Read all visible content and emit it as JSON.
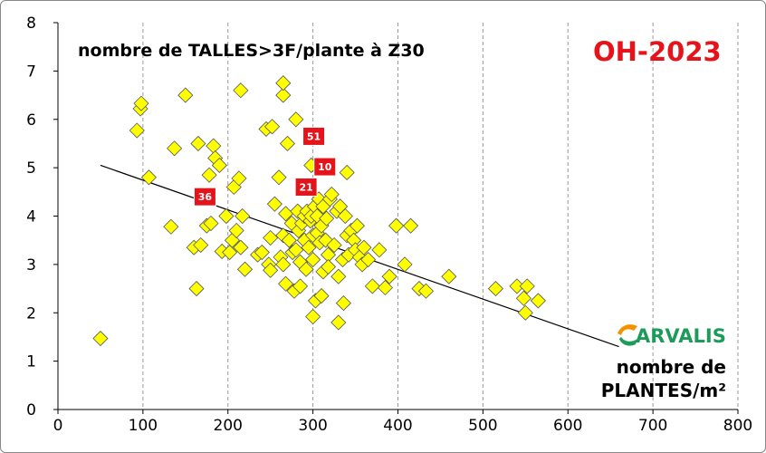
{
  "chart_data": {
    "type": "scatter",
    "title": "nombre de TALLES>3F/plante à Z30",
    "badge": "OH-2023",
    "xlabel_line1": "nombre de",
    "xlabel_line2": "PLANTES/m²",
    "xlim": [
      0,
      800
    ],
    "ylim": [
      0,
      8
    ],
    "xticks": [
      0,
      100,
      200,
      300,
      400,
      500,
      600,
      700,
      800
    ],
    "yticks": [
      0,
      1,
      2,
      3,
      4,
      5,
      6,
      7,
      8
    ],
    "grid": "vertical dashed",
    "marker_color": "#ffff00",
    "marker_edge": "#555555",
    "trend": {
      "x1": 50,
      "y1": 5.05,
      "x2": 660,
      "y2": 1.3
    },
    "points": [
      [
        50,
        1.47
      ],
      [
        93,
        5.77
      ],
      [
        97,
        6.22
      ],
      [
        98,
        6.33
      ],
      [
        107,
        4.8
      ],
      [
        133,
        3.78
      ],
      [
        137,
        5.4
      ],
      [
        150,
        6.5
      ],
      [
        160,
        3.35
      ],
      [
        163,
        2.5
      ],
      [
        165,
        5.5
      ],
      [
        168,
        3.4
      ],
      [
        170,
        4.4
      ],
      [
        175,
        3.8
      ],
      [
        178,
        4.85
      ],
      [
        180,
        3.85
      ],
      [
        183,
        5.45
      ],
      [
        185,
        5.2
      ],
      [
        190,
        5.05
      ],
      [
        193,
        3.27
      ],
      [
        198,
        4.0
      ],
      [
        202,
        3.25
      ],
      [
        205,
        3.5
      ],
      [
        207,
        4.6
      ],
      [
        210,
        3.7
      ],
      [
        213,
        4.78
      ],
      [
        215,
        6.6
      ],
      [
        215,
        3.35
      ],
      [
        217,
        4.0
      ],
      [
        220,
        2.9
      ],
      [
        235,
        3.2
      ],
      [
        240,
        3.25
      ],
      [
        245,
        5.8
      ],
      [
        248,
        3.0
      ],
      [
        250,
        2.88
      ],
      [
        250,
        3.55
      ],
      [
        252,
        5.85
      ],
      [
        255,
        4.25
      ],
      [
        260,
        4.8
      ],
      [
        262,
        3.15
      ],
      [
        265,
        3.0
      ],
      [
        265,
        3.6
      ],
      [
        265,
        6.5
      ],
      [
        265,
        6.75
      ],
      [
        268,
        2.6
      ],
      [
        268,
        4.05
      ],
      [
        270,
        5.5
      ],
      [
        272,
        3.5
      ],
      [
        275,
        3.85
      ],
      [
        276,
        3.25
      ],
      [
        278,
        2.45
      ],
      [
        280,
        6.0
      ],
      [
        280,
        3.3
      ],
      [
        282,
        4.1
      ],
      [
        283,
        3.7
      ],
      [
        285,
        2.55
      ],
      [
        285,
        3.05
      ],
      [
        287,
        3.85
      ],
      [
        290,
        3.5
      ],
      [
        290,
        4.0
      ],
      [
        292,
        2.9
      ],
      [
        293,
        4.1
      ],
      [
        295,
        3.35
      ],
      [
        297,
        3.9
      ],
      [
        298,
        4.0
      ],
      [
        298,
        5.05
      ],
      [
        300,
        1.92
      ],
      [
        300,
        3.6
      ],
      [
        300,
        3.1
      ],
      [
        302,
        4.2
      ],
      [
        303,
        2.25
      ],
      [
        305,
        3.65
      ],
      [
        305,
        4.0
      ],
      [
        307,
        4.35
      ],
      [
        308,
        3.45
      ],
      [
        310,
        2.35
      ],
      [
        310,
        3.8
      ],
      [
        312,
        2.85
      ],
      [
        312,
        4.2
      ],
      [
        315,
        3.5
      ],
      [
        316,
        3.95
      ],
      [
        318,
        3.2
      ],
      [
        318,
        2.95
      ],
      [
        320,
        4.35
      ],
      [
        322,
        4.45
      ],
      [
        325,
        3.4
      ],
      [
        328,
        4.1
      ],
      [
        330,
        1.8
      ],
      [
        330,
        2.75
      ],
      [
        332,
        4.2
      ],
      [
        335,
        3.1
      ],
      [
        336,
        2.2
      ],
      [
        338,
        4.0
      ],
      [
        340,
        3.6
      ],
      [
        340,
        4.9
      ],
      [
        342,
        3.2
      ],
      [
        345,
        3.7
      ],
      [
        348,
        3.5
      ],
      [
        350,
        3.3
      ],
      [
        352,
        3.8
      ],
      [
        355,
        3.15
      ],
      [
        358,
        3.0
      ],
      [
        360,
        3.35
      ],
      [
        365,
        3.1
      ],
      [
        370,
        2.55
      ],
      [
        378,
        3.3
      ],
      [
        385,
        2.52
      ],
      [
        390,
        2.75
      ],
      [
        398,
        3.8
      ],
      [
        408,
        3.0
      ],
      [
        415,
        3.8
      ],
      [
        425,
        2.5
      ],
      [
        433,
        2.45
      ],
      [
        460,
        2.75
      ],
      [
        515,
        2.5
      ],
      [
        540,
        2.55
      ],
      [
        548,
        2.3
      ],
      [
        550,
        2.0
      ],
      [
        552,
        2.55
      ],
      [
        565,
        2.25
      ]
    ],
    "labels": [
      {
        "text": "51",
        "x": 301,
        "y": 5.65
      },
      {
        "text": "10",
        "x": 314,
        "y": 5.02
      },
      {
        "text": "21",
        "x": 292,
        "y": 4.6
      },
      {
        "text": "36",
        "x": 173,
        "y": 4.4
      }
    ]
  },
  "logo": {
    "text": "ARVALIS",
    "color": "#1c9b5a"
  }
}
